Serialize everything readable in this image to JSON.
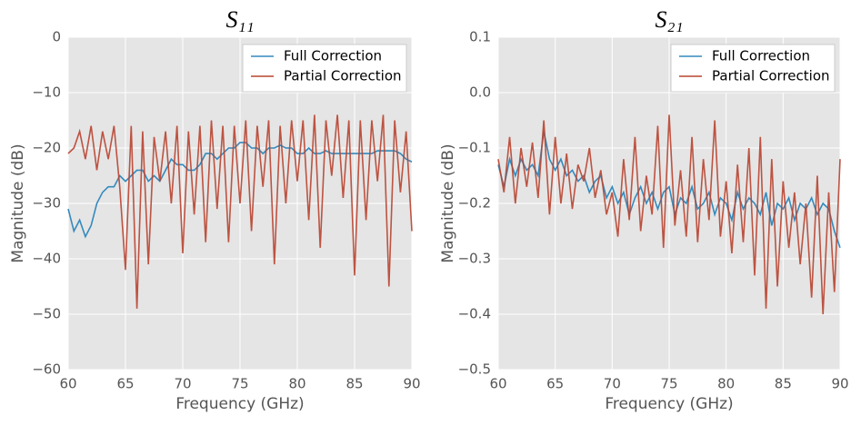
{
  "chart_data": [
    {
      "type": "line",
      "title": "S₁₁",
      "xlabel": "Frequency (GHz)",
      "ylabel": "Magnitude (dB)",
      "x": [
        60,
        60.5,
        61,
        61.5,
        62,
        62.5,
        63,
        63.5,
        64,
        64.5,
        65,
        65.5,
        66,
        66.5,
        67,
        67.5,
        68,
        68.5,
        69,
        69.5,
        70,
        70.5,
        71,
        71.5,
        72,
        72.5,
        73,
        73.5,
        74,
        74.5,
        75,
        75.5,
        76,
        76.5,
        77,
        77.5,
        78,
        78.5,
        79,
        79.5,
        80,
        80.5,
        81,
        81.5,
        82,
        82.5,
        83,
        83.5,
        84,
        84.5,
        85,
        85.5,
        86,
        86.5,
        87,
        87.5,
        88,
        88.5,
        89,
        89.5,
        90
      ],
      "series": [
        {
          "name": "Full Correction",
          "color": "#348abd",
          "values": [
            -31,
            -35,
            -33,
            -36,
            -34,
            -30,
            -28,
            -27,
            -27,
            -25,
            -26,
            -25,
            -24,
            -24,
            -26,
            -25,
            -26,
            -24,
            -22,
            -23,
            -23,
            -24,
            -24,
            -23,
            -21,
            -21,
            -22,
            -21,
            -20,
            -20,
            -19,
            -19,
            -20,
            -20,
            -21,
            -20,
            -20,
            -19.5,
            -20,
            -20,
            -21,
            -21,
            -20,
            -21,
            -21,
            -20.5,
            -21,
            -21,
            -21,
            -21,
            -21,
            -21,
            -21,
            -21,
            -20.5,
            -20.5,
            -20.5,
            -20.5,
            -21,
            -22,
            -22.5
          ]
        },
        {
          "name": "Partial Correction",
          "color": "#b8432f",
          "values": [
            -21,
            -20,
            -17,
            -22,
            -16,
            -24,
            -17,
            -22,
            -16,
            -27,
            -42,
            -16,
            -49,
            -17,
            -41,
            -18,
            -26,
            -17,
            -30,
            -16,
            -39,
            -17,
            -32,
            -16,
            -37,
            -15,
            -31,
            -16,
            -37,
            -16,
            -30,
            -15,
            -35,
            -16,
            -27,
            -15,
            -41,
            -16,
            -30,
            -15,
            -26,
            -15,
            -33,
            -14,
            -38,
            -15,
            -25,
            -14,
            -29,
            -15,
            -43,
            -15,
            -33,
            -15,
            -26,
            -14,
            -45,
            -15,
            -28,
            -17,
            -35
          ]
        }
      ],
      "xlim": [
        60,
        90
      ],
      "xticks": [
        60,
        65,
        70,
        75,
        80,
        85,
        90
      ],
      "ylim": [
        -60,
        0
      ],
      "yticks": [
        {
          "value": -60,
          "label": "−60"
        },
        {
          "value": -50,
          "label": "−50"
        },
        {
          "value": -40,
          "label": "−40"
        },
        {
          "value": -30,
          "label": "−30"
        },
        {
          "value": -20,
          "label": "−20"
        },
        {
          "value": -10,
          "label": "−10"
        },
        0
      ],
      "grid": true,
      "legend": "upper right"
    },
    {
      "type": "line",
      "title": "S₂₁",
      "xlabel": "Frequency (GHz)",
      "ylabel": "Magnitude (dB)",
      "x": [
        60,
        60.5,
        61,
        61.5,
        62,
        62.5,
        63,
        63.5,
        64,
        64.5,
        65,
        65.5,
        66,
        66.5,
        67,
        67.5,
        68,
        68.5,
        69,
        69.5,
        70,
        70.5,
        71,
        71.5,
        72,
        72.5,
        73,
        73.5,
        74,
        74.5,
        75,
        75.5,
        76,
        76.5,
        77,
        77.5,
        78,
        78.5,
        79,
        79.5,
        80,
        80.5,
        81,
        81.5,
        82,
        82.5,
        83,
        83.5,
        84,
        84.5,
        85,
        85.5,
        86,
        86.5,
        87,
        87.5,
        88,
        88.5,
        89,
        89.5,
        90
      ],
      "series": [
        {
          "name": "Full Correction",
          "color": "#348abd",
          "values": [
            -0.13,
            -0.17,
            -0.12,
            -0.15,
            -0.12,
            -0.14,
            -0.13,
            -0.15,
            -0.07,
            -0.12,
            -0.14,
            -0.12,
            -0.15,
            -0.14,
            -0.16,
            -0.15,
            -0.18,
            -0.16,
            -0.15,
            -0.19,
            -0.17,
            -0.2,
            -0.18,
            -0.22,
            -0.19,
            -0.17,
            -0.2,
            -0.18,
            -0.21,
            -0.18,
            -0.17,
            -0.22,
            -0.19,
            -0.2,
            -0.17,
            -0.21,
            -0.2,
            -0.18,
            -0.22,
            -0.19,
            -0.2,
            -0.23,
            -0.18,
            -0.21,
            -0.19,
            -0.2,
            -0.22,
            -0.18,
            -0.24,
            -0.2,
            -0.21,
            -0.19,
            -0.23,
            -0.2,
            -0.21,
            -0.19,
            -0.22,
            -0.2,
            -0.21,
            -0.25,
            -0.28
          ]
        },
        {
          "name": "Partial Correction",
          "color": "#b8432f",
          "values": [
            -0.12,
            -0.18,
            -0.08,
            -0.2,
            -0.1,
            -0.17,
            -0.09,
            -0.19,
            -0.05,
            -0.22,
            -0.08,
            -0.2,
            -0.11,
            -0.21,
            -0.13,
            -0.16,
            -0.1,
            -0.19,
            -0.14,
            -0.22,
            -0.18,
            -0.26,
            -0.12,
            -0.23,
            -0.08,
            -0.25,
            -0.15,
            -0.22,
            -0.06,
            -0.28,
            -0.04,
            -0.24,
            -0.14,
            -0.26,
            -0.08,
            -0.27,
            -0.12,
            -0.23,
            -0.05,
            -0.26,
            -0.16,
            -0.29,
            -0.13,
            -0.27,
            -0.1,
            -0.33,
            -0.08,
            -0.39,
            -0.12,
            -0.35,
            -0.16,
            -0.28,
            -0.18,
            -0.31,
            -0.2,
            -0.37,
            -0.15,
            -0.4,
            -0.18,
            -0.36,
            -0.12
          ]
        }
      ],
      "xlim": [
        60,
        90
      ],
      "xticks": [
        60,
        65,
        70,
        75,
        80,
        85,
        90
      ],
      "ylim": [
        -0.5,
        0.1
      ],
      "yticks": [
        {
          "value": -0.5,
          "label": "−0.5"
        },
        {
          "value": -0.4,
          "label": "−0.4"
        },
        {
          "value": -0.3,
          "label": "−0.3"
        },
        {
          "value": -0.2,
          "label": "−0.2"
        },
        {
          "value": -0.1,
          "label": "−0.1"
        },
        {
          "value": 0,
          "label": "0.0"
        },
        0.1
      ],
      "grid": true,
      "legend": "upper right"
    }
  ]
}
